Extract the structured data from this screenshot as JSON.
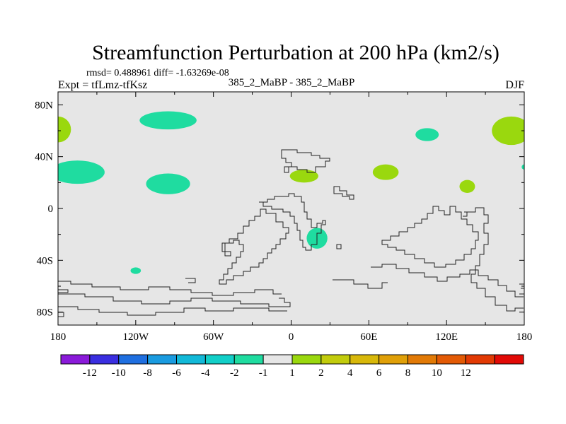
{
  "chart_data": {
    "type": "map-contour",
    "title": "Streamfunction Perturbation at 200 hPa (km2/s)",
    "stats_label": "rmsd= 0.488961 diff= -1.63269e-08",
    "left_label": "Expt = tfLmz-tfKsz",
    "center_label": "385_2_MaBP - 385_2_MaBP",
    "right_label": "DJF",
    "x_range": [
      -180,
      180
    ],
    "y_range": [
      -90,
      90
    ],
    "x_ticks": [
      {
        "value": -180,
        "label": "180"
      },
      {
        "value": -120,
        "label": "120W"
      },
      {
        "value": -60,
        "label": "60W"
      },
      {
        "value": 0,
        "label": "0"
      },
      {
        "value": 60,
        "label": "60E"
      },
      {
        "value": 120,
        "label": "120E"
      },
      {
        "value": 180,
        "label": "180"
      }
    ],
    "y_ticks": [
      {
        "value": 80,
        "label": "80N"
      },
      {
        "value": 40,
        "label": "40N"
      },
      {
        "value": 0,
        "label": "0"
      },
      {
        "value": -40,
        "label": "40S"
      },
      {
        "value": -80,
        "label": "80S"
      }
    ],
    "colorbar": {
      "colors": [
        "#8a1ad9",
        "#3a2ee0",
        "#1f6fe0",
        "#1a9be0",
        "#12b9d8",
        "#12cfc8",
        "#1fdca0",
        "#e6e6e6",
        "#9ad80e",
        "#c2cc0c",
        "#d8b80a",
        "#e0a008",
        "#e27a06",
        "#e35a05",
        "#e23a04",
        "#e20a06"
      ],
      "labels": [
        "-12",
        "-10",
        "-8",
        "-6",
        "-4",
        "-2",
        "-1",
        "1",
        "2",
        "4",
        "6",
        "8",
        "10",
        "12"
      ]
    },
    "anomalies": [
      {
        "lon": -180,
        "lat": 61,
        "rlon": 10,
        "rlat": 10,
        "value": 1.5
      },
      {
        "lon": -95,
        "lat": 68,
        "rlon": 22,
        "rlat": 7,
        "value": -1.5
      },
      {
        "lon": -165,
        "lat": 28,
        "rlon": 21,
        "rlat": 9,
        "value": -1.5
      },
      {
        "lon": -95,
        "lat": 19,
        "rlon": 17,
        "rlat": 8,
        "value": -1.5
      },
      {
        "lon": 10,
        "lat": 25,
        "rlon": 11,
        "rlat": 5,
        "value": 1.5
      },
      {
        "lon": 73,
        "lat": 28,
        "rlon": 10,
        "rlat": 6,
        "value": 1.5
      },
      {
        "lon": 105,
        "lat": 57,
        "rlon": 9,
        "rlat": 5,
        "value": -1.5
      },
      {
        "lon": 170,
        "lat": 60,
        "rlon": 15,
        "rlat": 11,
        "value": 1.5
      },
      {
        "lon": 180,
        "lat": 32,
        "rlon": 2,
        "rlat": 2,
        "value": -1.5
      },
      {
        "lon": 136,
        "lat": 17,
        "rlon": 6,
        "rlat": 5,
        "value": 1.5
      },
      {
        "lon": 20,
        "lat": -23,
        "rlon": 8,
        "rlat": 8,
        "value": -1.5
      },
      {
        "lon": -120,
        "lat": -48,
        "rlon": 4,
        "rlat": 2.5,
        "value": -1.5
      }
    ]
  }
}
